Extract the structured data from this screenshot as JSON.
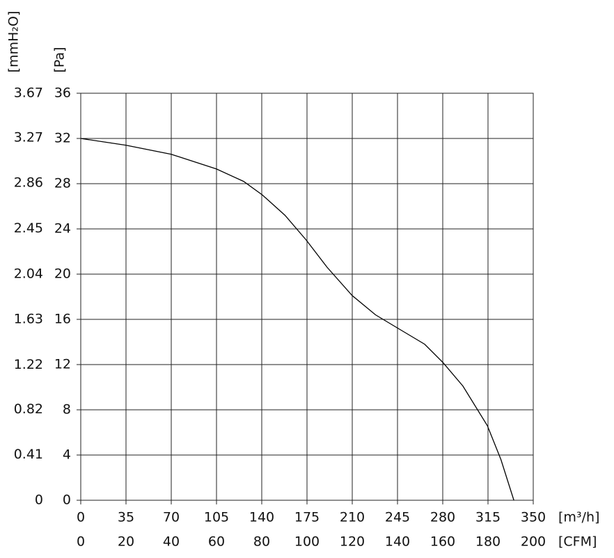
{
  "chart_data": {
    "type": "line",
    "x": [
      0,
      35,
      70,
      105,
      126,
      140.5,
      158,
      174.5,
      190.6,
      210,
      228,
      245.5,
      266,
      280,
      295.6,
      314.5,
      325,
      335
    ],
    "series": [
      {
        "color": "#000000",
        "values": [
          32.0,
          31.4,
          30.6,
          29.3,
          28.2,
          27.0,
          25.2,
          23.0,
          20.6,
          18.1,
          16.4,
          15.2,
          13.8,
          12.2,
          10.1,
          6.6,
          3.6,
          0
        ]
      }
    ],
    "xlabel": "[m³/h]",
    "x2label": "[CFM]",
    "ylabel": "[Pa]",
    "y2label": "[mmH₂O]",
    "xlim": [
      0,
      350
    ],
    "xticks": [
      0,
      35,
      70,
      105,
      140,
      175,
      210,
      245,
      280,
      315,
      350
    ],
    "x2lim": [
      0,
      200
    ],
    "x2ticks": [
      0,
      20,
      40,
      60,
      80,
      100,
      120,
      140,
      160,
      180,
      200
    ],
    "ylim": [
      0,
      36
    ],
    "yticks": [
      0,
      4,
      8,
      12,
      16,
      20,
      24,
      28,
      32,
      36
    ],
    "y2lim": [
      0,
      3.67
    ],
    "y2ticks": [
      0,
      0.41,
      0.82,
      1.22,
      1.63,
      2.04,
      2.45,
      2.86,
      3.27,
      3.67
    ],
    "grid": true
  }
}
